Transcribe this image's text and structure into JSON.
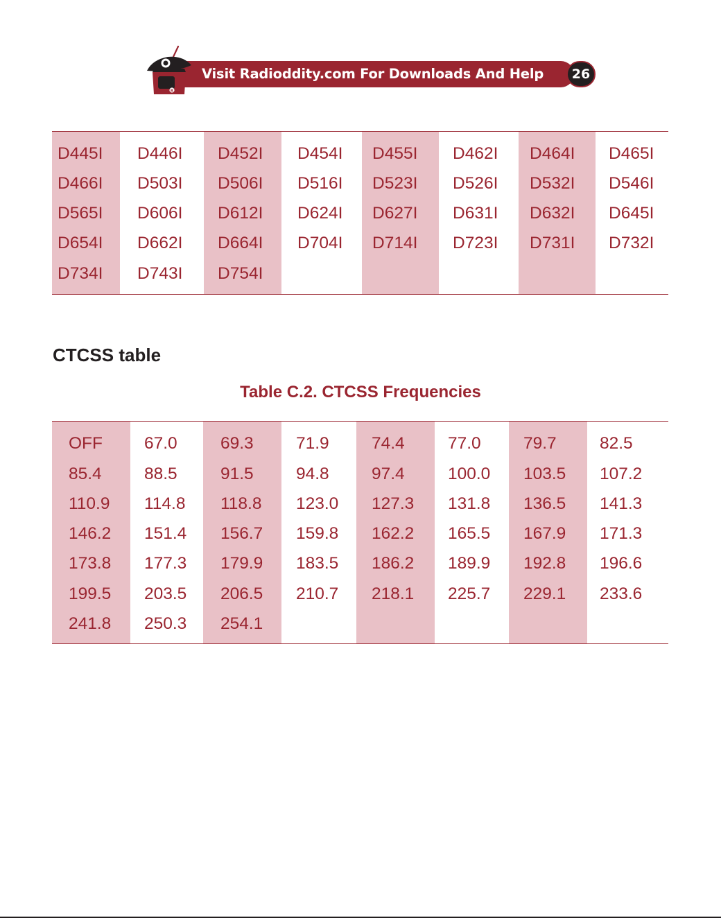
{
  "header": {
    "banner_text": "Visit Radioddity.com For Downloads And Help",
    "page_number": "26"
  },
  "colors": {
    "accent": "#9a2530",
    "column_shade": "#e9c1c7",
    "text_dark": "#231f20"
  },
  "dcs_table": {
    "columns": [
      [
        "D445I",
        "D466I",
        "D565I",
        "D654I",
        "D734I"
      ],
      [
        "D446I",
        "D503I",
        "D606I",
        "D662I",
        "D743I"
      ],
      [
        "D452I",
        "D506I",
        "D612I",
        "D664I",
        "D754I"
      ],
      [
        "D454I",
        "D516I",
        "D624I",
        "D704I"
      ],
      [
        "D455I",
        "D523I",
        "D627I",
        "D714I"
      ],
      [
        "D462I",
        "D526I",
        "D631I",
        "D723I"
      ],
      [
        "D464I",
        "D532I",
        "D632I",
        "D731I"
      ],
      [
        "D465I",
        "D546I",
        "D645I",
        "D732I"
      ]
    ]
  },
  "ctcss_section": {
    "title": "CTCSS table",
    "caption": "Table C.2. CTCSS Frequencies"
  },
  "ctcss_table": {
    "columns": [
      [
        "OFF",
        "85.4",
        "110.9",
        "146.2",
        "173.8",
        "199.5",
        "241.8"
      ],
      [
        "67.0",
        "88.5",
        "114.8",
        "151.4",
        "177.3",
        "203.5",
        "250.3"
      ],
      [
        "69.3",
        "91.5",
        "118.8",
        "156.7",
        "179.9",
        "206.5",
        "254.1"
      ],
      [
        "71.9",
        "94.8",
        "123.0",
        "159.8",
        "183.5",
        "210.7"
      ],
      [
        "74.4",
        "97.4",
        "127.3",
        "162.2",
        "186.2",
        "218.1"
      ],
      [
        "77.0",
        "100.0",
        "131.8",
        "165.5",
        "189.9",
        "225.7"
      ],
      [
        "79.7",
        "103.5",
        "136.5",
        "167.9",
        "192.8",
        "229.1"
      ],
      [
        "82.5",
        "107.2",
        "141.3",
        "171.3",
        "196.6",
        "233.6"
      ]
    ]
  }
}
